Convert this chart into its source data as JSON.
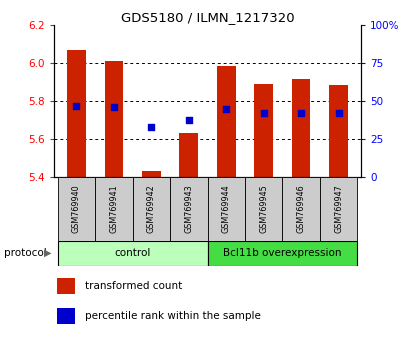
{
  "title": "GDS5180 / ILMN_1217320",
  "samples": [
    "GSM769940",
    "GSM769941",
    "GSM769942",
    "GSM769943",
    "GSM769944",
    "GSM769945",
    "GSM769946",
    "GSM769947"
  ],
  "bar_tops": [
    6.065,
    6.01,
    5.43,
    5.63,
    5.985,
    5.89,
    5.915,
    5.885
  ],
  "bar_bottom": 5.4,
  "percentile_values": [
    5.775,
    5.77,
    5.665,
    5.7,
    5.755,
    5.735,
    5.735,
    5.735
  ],
  "ylim_left": [
    5.4,
    6.2
  ],
  "ylim_right": [
    0,
    100
  ],
  "yticks_left": [
    5.4,
    5.6,
    5.8,
    6.0,
    6.2
  ],
  "yticks_right": [
    0,
    25,
    50,
    75,
    100
  ],
  "ytick_labels_right": [
    "0",
    "25",
    "50",
    "75",
    "100%"
  ],
  "bar_color": "#cc2200",
  "dot_color": "#0000cc",
  "control_color": "#bbffbb",
  "overexpression_color": "#44dd44",
  "control_label": "control",
  "overexpression_label": "Bcl11b overexpression",
  "protocol_label": "protocol",
  "legend1_label": "transformed count",
  "legend2_label": "percentile rank within the sample",
  "control_count": 4,
  "overexpression_count": 4,
  "label_bg_color": "#cccccc",
  "bar_width": 0.5
}
